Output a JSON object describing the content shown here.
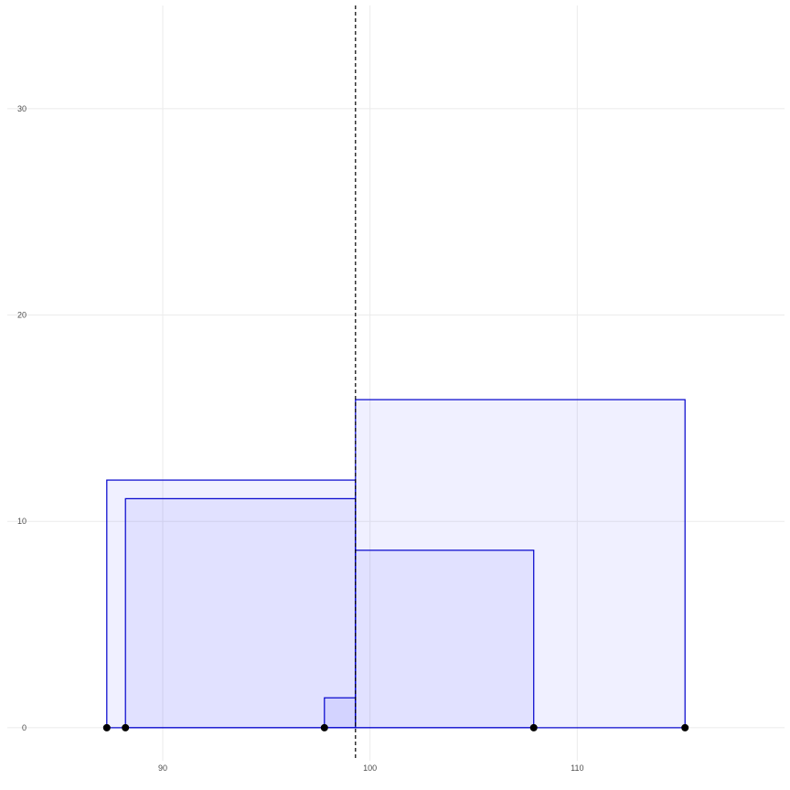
{
  "chart_data": {
    "type": "rectangles",
    "title": "",
    "xlabel": "",
    "ylabel": "",
    "xlim": [
      82.5,
      120
    ],
    "ylim": [
      -1.6,
      35
    ],
    "x_ticks": [
      90,
      100,
      110
    ],
    "y_ticks": [
      0,
      10,
      20,
      30
    ],
    "grid": true,
    "reference_line": {
      "x": 99.3,
      "style": "dashed",
      "color": "#000000"
    },
    "rectangles": [
      {
        "x0": 87.3,
        "x1": 99.3,
        "height": 12.0,
        "fill": "#0000ff",
        "fill_opacity": 0.06,
        "stroke": "#0000cc"
      },
      {
        "x0": 88.2,
        "x1": 99.3,
        "height": 11.1,
        "fill": "#0000ff",
        "fill_opacity": 0.06,
        "stroke": "#0000cc"
      },
      {
        "x0": 97.8,
        "x1": 99.3,
        "height": 1.45,
        "fill": "#0000ff",
        "fill_opacity": 0.06,
        "stroke": "#0000cc"
      },
      {
        "x0": 99.3,
        "x1": 115.2,
        "height": 15.9,
        "fill": "#0000ff",
        "fill_opacity": 0.06,
        "stroke": "#0000cc"
      },
      {
        "x0": 99.3,
        "x1": 107.9,
        "height": 8.6,
        "fill": "#0000ff",
        "fill_opacity": 0.06,
        "stroke": "#0000cc"
      }
    ],
    "points": [
      {
        "x": 87.3,
        "y": 0
      },
      {
        "x": 88.2,
        "y": 0
      },
      {
        "x": 97.8,
        "y": 0
      },
      {
        "x": 107.9,
        "y": 0
      },
      {
        "x": 115.2,
        "y": 0
      }
    ]
  }
}
